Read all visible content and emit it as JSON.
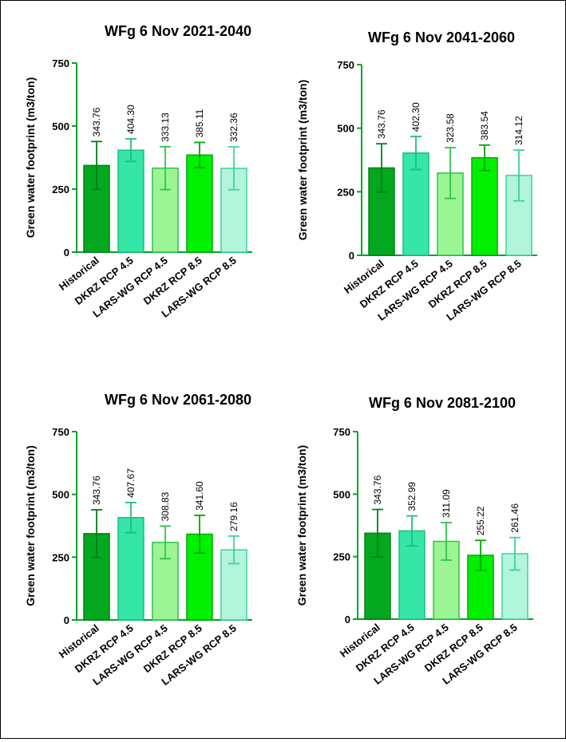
{
  "chart_data": [
    {
      "type": "bar",
      "title": "WFg 6 Nov 2021-2040",
      "ylabel": "Green water footprint (m3/ton)",
      "ylim": [
        0,
        750
      ],
      "yticks": [
        "0",
        "250",
        "500",
        "750"
      ],
      "categories": [
        "Historical",
        "DKRZ RCP 4.5",
        "LARS-WG RCP 4.5",
        "DKRZ RCP 8.5",
        "LARS-WG RCP 8.5"
      ],
      "values": [
        343.76,
        404.3,
        333.13,
        385.11,
        332.36
      ],
      "labels": [
        "343.76",
        "404.30",
        "333.13",
        "385.11",
        "332.36"
      ],
      "error": [
        95,
        45,
        85,
        50,
        85
      ],
      "grid": false
    },
    {
      "type": "bar",
      "title": "WFg 6 Nov 2041-2060",
      "ylabel": "Green water footprint (m3/ton)",
      "ylim": [
        0,
        750
      ],
      "yticks": [
        "0",
        "250",
        "500",
        "750"
      ],
      "categories": [
        "Historical",
        "DKRZ RCP 4.5",
        "LARS-WG RCP 4.5",
        "DKRZ RCP 8.5",
        "LARS-WG RCP 8.5"
      ],
      "values": [
        343.76,
        402.3,
        323.58,
        383.54,
        314.12
      ],
      "labels": [
        "343.76",
        "402.30",
        "323.58",
        "383.54",
        "314.12"
      ],
      "error": [
        95,
        65,
        100,
        50,
        100
      ],
      "grid": false
    },
    {
      "type": "bar",
      "title": "WFg 6 Nov 2061-2080",
      "ylabel": "Green water footprint (m3/ton)",
      "ylim": [
        0,
        750
      ],
      "yticks": [
        "0",
        "250",
        "500",
        "750"
      ],
      "categories": [
        "Historical",
        "DKRZ RCP 4.5",
        "LARS-WG RCP 4.5",
        "DKRZ RCP 8.5",
        "LARS-WG RCP 8.5"
      ],
      "values": [
        343.76,
        407.67,
        308.83,
        341.6,
        279.16
      ],
      "labels": [
        "343.76",
        "407.67",
        "308.83",
        "341.60",
        "279.16"
      ],
      "error": [
        95,
        60,
        65,
        75,
        55
      ],
      "grid": false
    },
    {
      "type": "bar",
      "title": "WFg 6 Nov 2081-2100",
      "ylabel": "Green water footprint (m3/ton)",
      "ylim": [
        0,
        750
      ],
      "yticks": [
        "0",
        "250",
        "500",
        "750"
      ],
      "categories": [
        "Historical",
        "DKRZ RCP 4.5",
        "LARS-WG RCP 4.5",
        "DKRZ RCP 8.5",
        "LARS-WG RCP 8.5"
      ],
      "values": [
        343.76,
        352.99,
        311.09,
        255.22,
        261.46
      ],
      "labels": [
        "343.76",
        "352.99",
        "311.09",
        "255.22",
        "261.46"
      ],
      "error": [
        95,
        60,
        75,
        60,
        65
      ],
      "grid": false
    }
  ],
  "colors": {
    "fills": [
      "#04a81e",
      "#35e6a8",
      "#9bf595",
      "#00f000",
      "#b3f5da"
    ],
    "strokes": [
      "#00801a",
      "#1cbf7c",
      "#2fc448",
      "#00a800",
      "#3ed39a"
    ],
    "axis": "#00a32a"
  }
}
